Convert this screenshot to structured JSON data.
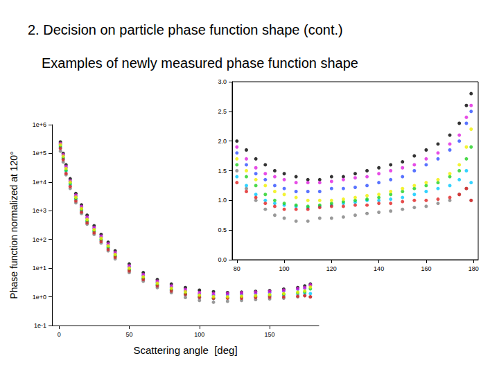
{
  "chart_data": [
    {
      "type": "scatter",
      "title": "2. Decision on particle phase function shape (cont.)",
      "subtitle": "Examples of newly measured phase function shape",
      "xlabel": "Scattering angle  [deg]",
      "ylabel": "Phase function normalized at 120°",
      "log": "y",
      "grid": false,
      "marker": "circle",
      "xlim": [
        -5,
        185
      ],
      "xticks": [
        0,
        50,
        100,
        150
      ],
      "ylim": [
        0.1,
        1000000
      ],
      "yticks": [
        {
          "value": 0.1,
          "label": "1e-1"
        },
        {
          "value": 1,
          "label": "1e+0"
        },
        {
          "value": 10,
          "label": "1e+1"
        },
        {
          "value": 100,
          "label": "1e+2"
        },
        {
          "value": 1000,
          "label": "1e+3"
        },
        {
          "value": 10000,
          "label": "1e+4"
        },
        {
          "value": 100000,
          "label": "1e+5"
        },
        {
          "value": 1000000,
          "label": "1e+6"
        }
      ],
      "x": [
        1,
        3,
        5,
        8,
        12,
        16,
        20,
        25,
        30,
        35,
        40,
        50,
        60,
        70,
        80,
        90,
        100,
        110,
        120,
        130,
        140,
        150,
        160,
        170,
        175,
        179
      ],
      "series": [
        {
          "color": "#808080",
          "values": [
            120000,
            50000,
            18000,
            6000,
            1900,
            800,
            340,
            150,
            75,
            40,
            21,
            7,
            3.5,
            2.1,
            1.4,
            0.95,
            0.75,
            0.65,
            0.7,
            0.75,
            0.8,
            0.85,
            0.9,
            1.0,
            1.1,
            1.0
          ]
        },
        {
          "color": "#00c8ff",
          "values": [
            160000,
            65000,
            24000,
            8000,
            2500,
            1000,
            420,
            190,
            95,
            50,
            26,
            8.5,
            4.2,
            2.5,
            1.7,
            1.2,
            0.95,
            0.88,
            0.92,
            0.97,
            1.0,
            1.05,
            1.15,
            1.25,
            1.35,
            1.3
          ]
        },
        {
          "color": "#3050ff",
          "values": [
            210000,
            85000,
            32000,
            10500,
            3200,
            1300,
            550,
            240,
            120,
            65,
            32,
            11,
            5.5,
            3.2,
            2.2,
            1.6,
            1.25,
            1.15,
            1.2,
            1.22,
            1.3,
            1.4,
            1.6,
            1.85,
            2.0,
            2.5
          ]
        },
        {
          "color": "#000000",
          "values": [
            250000,
            100000,
            40000,
            13000,
            4000,
            1600,
            700,
            300,
            150,
            80,
            40,
            14,
            7,
            4,
            2.8,
            2.1,
            1.7,
            1.5,
            1.4,
            1.45,
            1.55,
            1.65,
            1.85,
            2.1,
            2.4,
            2.8
          ]
        },
        {
          "color": "#e020e0",
          "values": [
            220000,
            90000,
            35000,
            11000,
            3500,
            1400,
            600,
            260,
            130,
            70,
            35,
            12,
            6,
            3.5,
            2.4,
            1.8,
            1.4,
            1.3,
            1.32,
            1.38,
            1.45,
            1.55,
            1.7,
            1.95,
            2.1,
            2.6
          ]
        },
        {
          "color": "#20d020",
          "values": [
            180000,
            70000,
            26000,
            9000,
            2700,
            1100,
            450,
            200,
            100,
            55,
            27,
            9,
            4.5,
            2.7,
            1.8,
            1.3,
            1.05,
            0.92,
            0.95,
            1.0,
            1.05,
            1.15,
            1.25,
            1.4,
            1.5,
            1.9
          ]
        },
        {
          "color": "#e02020",
          "values": [
            150000,
            60000,
            20000,
            7000,
            2200,
            900,
            380,
            170,
            85,
            45,
            24,
            8,
            4,
            2.4,
            1.6,
            1.2,
            0.95,
            0.88,
            0.9,
            0.9,
            0.95,
            0.98,
            1.0,
            1.05,
            1.1,
            1.0
          ]
        },
        {
          "color": "#f0f000",
          "values": [
            200000,
            80000,
            30000,
            10000,
            3000,
            1200,
            500,
            220,
            110,
            60,
            30,
            10,
            5,
            3,
            2,
            1.5,
            1.15,
            1.02,
            1.0,
            1.05,
            1.1,
            1.2,
            1.3,
            1.45,
            1.6,
            2.2
          ]
        }
      ]
    },
    {
      "type": "scatter",
      "grid": false,
      "marker": "circle",
      "xlim": [
        78,
        182
      ],
      "xticks": [
        80,
        100,
        120,
        140,
        160,
        180
      ],
      "ylim": [
        0,
        3
      ],
      "yticks": [
        {
          "value": 0,
          "label": "0.0"
        },
        {
          "value": 0.5,
          "label": "0.5"
        },
        {
          "value": 1,
          "label": "1.0"
        },
        {
          "value": 1.5,
          "label": "1.5"
        },
        {
          "value": 2,
          "label": "2.0"
        },
        {
          "value": 2.5,
          "label": "2.5"
        },
        {
          "value": 3,
          "label": "3.0"
        }
      ],
      "x": [
        80,
        84,
        88,
        92,
        96,
        100,
        105,
        110,
        115,
        120,
        125,
        130,
        135,
        140,
        145,
        150,
        155,
        160,
        165,
        170,
        174,
        177,
        179
      ],
      "series": [
        {
          "color": "#808080",
          "values": [
            1.5,
            1.2,
            1.0,
            0.85,
            0.75,
            0.7,
            0.65,
            0.65,
            0.7,
            0.7,
            0.72,
            0.75,
            0.78,
            0.8,
            0.82,
            0.85,
            0.88,
            0.9,
            0.95,
            1.0,
            1.1,
            1.2,
            1.0
          ]
        },
        {
          "color": "#00c8ff",
          "values": [
            1.4,
            1.25,
            1.1,
            1.0,
            0.95,
            0.92,
            0.9,
            0.88,
            0.9,
            0.92,
            0.95,
            0.97,
            1.0,
            1.0,
            1.02,
            1.05,
            1.1,
            1.15,
            1.2,
            1.25,
            1.35,
            1.5,
            1.3
          ]
        },
        {
          "color": "#3050ff",
          "values": [
            1.8,
            1.6,
            1.45,
            1.35,
            1.25,
            1.2,
            1.15,
            1.15,
            1.15,
            1.2,
            1.2,
            1.22,
            1.25,
            1.3,
            1.35,
            1.4,
            1.5,
            1.6,
            1.7,
            1.85,
            2.0,
            2.3,
            2.5
          ]
        },
        {
          "color": "#000000",
          "values": [
            2.0,
            1.85,
            1.7,
            1.6,
            1.5,
            1.45,
            1.4,
            1.35,
            1.35,
            1.4,
            1.4,
            1.45,
            1.5,
            1.55,
            1.6,
            1.65,
            1.75,
            1.85,
            1.95,
            2.1,
            2.3,
            2.6,
            2.8
          ]
        },
        {
          "color": "#e020e0",
          "values": [
            1.9,
            1.7,
            1.55,
            1.45,
            1.4,
            1.35,
            1.3,
            1.3,
            1.3,
            1.32,
            1.35,
            1.38,
            1.4,
            1.45,
            1.5,
            1.55,
            1.6,
            1.7,
            1.8,
            1.95,
            2.1,
            2.4,
            2.6
          ]
        },
        {
          "color": "#20d020",
          "values": [
            1.6,
            1.4,
            1.25,
            1.1,
            1.0,
            0.95,
            0.92,
            0.9,
            0.92,
            0.95,
            0.98,
            1.0,
            1.02,
            1.05,
            1.1,
            1.15,
            1.2,
            1.25,
            1.3,
            1.4,
            1.5,
            1.7,
            1.9
          ]
        },
        {
          "color": "#e02020",
          "values": [
            1.3,
            1.15,
            1.05,
            0.95,
            0.9,
            0.85,
            0.85,
            0.85,
            0.88,
            0.9,
            0.9,
            0.92,
            0.92,
            0.95,
            0.95,
            0.98,
            1.0,
            1.0,
            1.02,
            1.05,
            1.1,
            1.2,
            1.0
          ]
        },
        {
          "color": "#f0f000",
          "values": [
            1.7,
            1.5,
            1.35,
            1.25,
            1.15,
            1.1,
            1.05,
            1.0,
            1.0,
            1.0,
            1.02,
            1.05,
            1.08,
            1.1,
            1.15,
            1.2,
            1.25,
            1.3,
            1.35,
            1.45,
            1.6,
            1.9,
            2.2
          ]
        }
      ]
    }
  ]
}
